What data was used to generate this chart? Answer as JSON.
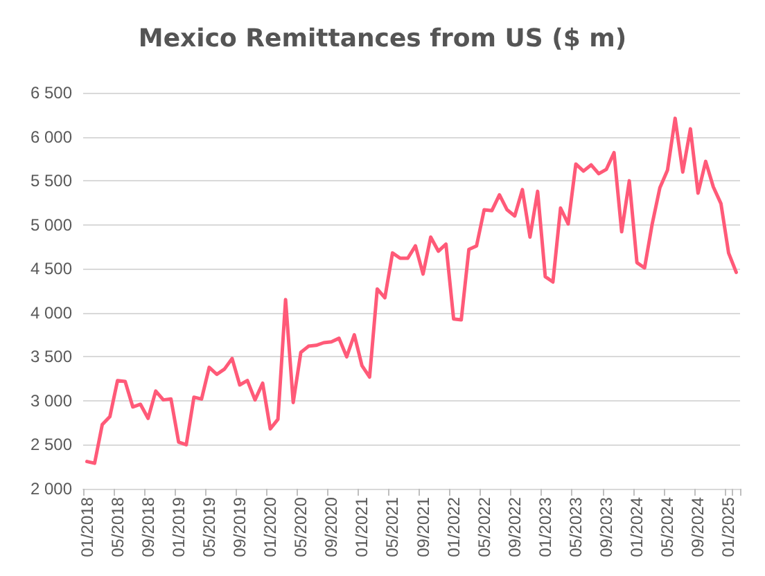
{
  "chart_data": {
    "type": "line",
    "title": "Mexico Remittances from US ($ m)",
    "categories": [
      "01/2018",
      null,
      null,
      null,
      "05/2018",
      null,
      null,
      null,
      "09/2018",
      null,
      null,
      null,
      "01/2019",
      null,
      null,
      null,
      "05/2019",
      null,
      null,
      null,
      "09/2019",
      null,
      null,
      null,
      "01/2020",
      null,
      null,
      null,
      "05/2020",
      null,
      null,
      null,
      "09/2020",
      null,
      null,
      null,
      "01/2021",
      null,
      null,
      null,
      "05/2021",
      null,
      null,
      null,
      "09/2021",
      null,
      null,
      null,
      "01/2022",
      null,
      null,
      null,
      "05/2022",
      null,
      null,
      null,
      "09/2022",
      null,
      null,
      null,
      "01/2023",
      null,
      null,
      null,
      "05/2023",
      null,
      null,
      null,
      "09/2023",
      null,
      null,
      null,
      "01/2024",
      null,
      null,
      null,
      "05/2024",
      null,
      null,
      null,
      "09/2024",
      null,
      null,
      null,
      "01/2025",
      null
    ],
    "series": [
      {
        "color": "#ff5a78",
        "values": [
          2310,
          2290,
          2730,
          2820,
          3230,
          3220,
          2930,
          2960,
          2800,
          3110,
          3010,
          3020,
          2530,
          2500,
          3040,
          3020,
          3380,
          3300,
          3360,
          3480,
          3180,
          3230,
          3010,
          3200,
          2680,
          2790,
          4150,
          2980,
          3550,
          3620,
          3630,
          3660,
          3670,
          3710,
          3500,
          3750,
          3400,
          3270,
          4270,
          4170,
          4680,
          4620,
          4620,
          4760,
          4440,
          4860,
          4700,
          4780,
          3930,
          3920,
          4720,
          4760,
          5170,
          5160,
          5340,
          5170,
          5100,
          5400,
          4860,
          5380,
          4410,
          4350,
          5190,
          5010,
          5690,
          5610,
          5680,
          5580,
          5630,
          5820,
          4920,
          5500,
          4570,
          4510,
          5010,
          5420,
          5620,
          6210,
          5600,
          6090,
          5360,
          5720,
          5430,
          5240,
          4680,
          4460
        ]
      }
    ],
    "ylim": [
      2000,
      6500
    ],
    "yticks": [
      {
        "value": 2000,
        "label": "2 000"
      },
      {
        "value": 2500,
        "label": "2 500"
      },
      {
        "value": 3000,
        "label": "3 000"
      },
      {
        "value": 3500,
        "label": "3 500"
      },
      {
        "value": 4000,
        "label": "4 000"
      },
      {
        "value": 4500,
        "label": "4 500"
      },
      {
        "value": 5000,
        "label": "5 000"
      },
      {
        "value": 5500,
        "label": "5 500"
      },
      {
        "value": 6000,
        "label": "6 000"
      },
      {
        "value": 6500,
        "label": "6 500"
      }
    ],
    "grid": "y",
    "marker": "none",
    "line_style": "solid"
  }
}
